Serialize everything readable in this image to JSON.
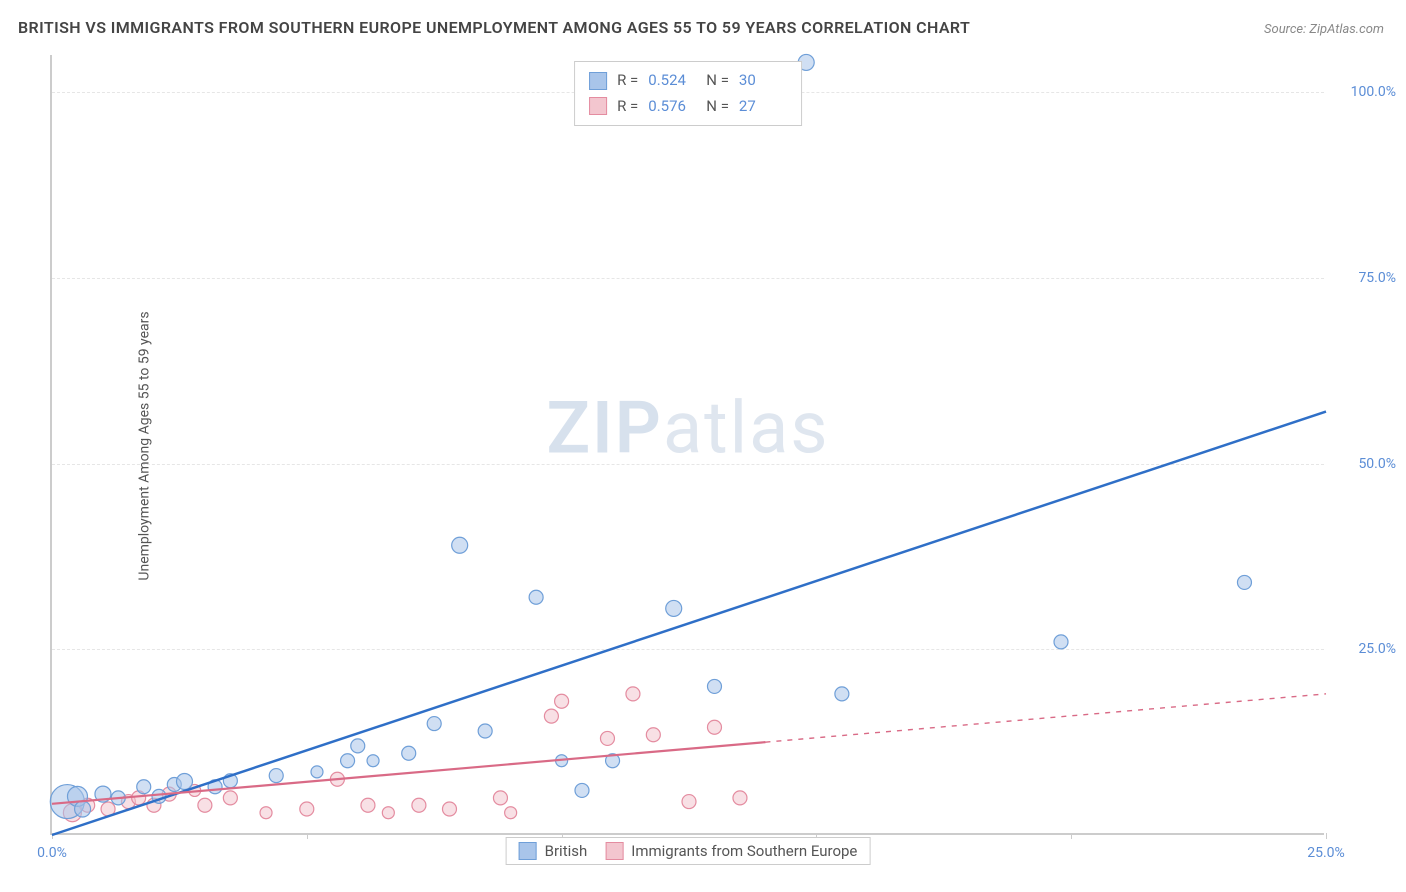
{
  "title": "BRITISH VS IMMIGRANTS FROM SOUTHERN EUROPE UNEMPLOYMENT AMONG AGES 55 TO 59 YEARS CORRELATION CHART",
  "source": "Source: ZipAtlas.com",
  "ylabel": "Unemployment Among Ages 55 to 59 years",
  "watermark_a": "ZIP",
  "watermark_b": "atlas",
  "chart": {
    "type": "scatter",
    "xlim": [
      0,
      25
    ],
    "ylim": [
      0,
      105
    ],
    "x_ticks": [
      0,
      5,
      10,
      15,
      20,
      25
    ],
    "x_tick_labels": {
      "0": "0.0%",
      "25": "25.0%"
    },
    "y_ticks": [
      25,
      50,
      75,
      100
    ],
    "y_tick_labels": {
      "25": "25.0%",
      "50": "50.0%",
      "75": "75.0%",
      "100": "100.0%"
    },
    "background_color": "#ffffff",
    "grid_color": "#e6e6e6",
    "axis_color": "#cccccc",
    "tick_label_color": "#5b8dd6",
    "title_fontsize": 16,
    "label_fontsize": 14
  },
  "series": {
    "british": {
      "label": "British",
      "color_fill": "#a9c5ea",
      "color_stroke": "#6f9fd8",
      "line_color": "#2f6fc7",
      "r_value": "0.524",
      "n_value": "30",
      "trend": {
        "x1": 0,
        "y1": 0,
        "x2": 25,
        "y2": 57
      },
      "points": [
        {
          "x": 0.3,
          "y": 4.5,
          "r": 17
        },
        {
          "x": 0.5,
          "y": 5.2,
          "r": 10
        },
        {
          "x": 0.6,
          "y": 3.5,
          "r": 8
        },
        {
          "x": 1.0,
          "y": 5.5,
          "r": 8
        },
        {
          "x": 1.3,
          "y": 5.0,
          "r": 7
        },
        {
          "x": 1.8,
          "y": 6.5,
          "r": 7
        },
        {
          "x": 2.1,
          "y": 5.2,
          "r": 7
        },
        {
          "x": 2.4,
          "y": 6.8,
          "r": 7
        },
        {
          "x": 2.6,
          "y": 7.2,
          "r": 8
        },
        {
          "x": 3.2,
          "y": 6.5,
          "r": 7
        },
        {
          "x": 3.5,
          "y": 7.3,
          "r": 7
        },
        {
          "x": 4.4,
          "y": 8.0,
          "r": 7
        },
        {
          "x": 5.8,
          "y": 10.0,
          "r": 7
        },
        {
          "x": 6.0,
          "y": 12.0,
          "r": 7
        },
        {
          "x": 6.3,
          "y": 10.0,
          "r": 6
        },
        {
          "x": 7.0,
          "y": 11.0,
          "r": 7
        },
        {
          "x": 7.5,
          "y": 15.0,
          "r": 7
        },
        {
          "x": 8.0,
          "y": 39.0,
          "r": 8
        },
        {
          "x": 8.5,
          "y": 14.0,
          "r": 7
        },
        {
          "x": 9.5,
          "y": 32.0,
          "r": 7
        },
        {
          "x": 10.0,
          "y": 10.0,
          "r": 6
        },
        {
          "x": 10.4,
          "y": 6.0,
          "r": 7
        },
        {
          "x": 11.0,
          "y": 10.0,
          "r": 7
        },
        {
          "x": 12.2,
          "y": 30.5,
          "r": 8
        },
        {
          "x": 13.0,
          "y": 20.0,
          "r": 7
        },
        {
          "x": 14.8,
          "y": 104.0,
          "r": 8
        },
        {
          "x": 15.5,
          "y": 19.0,
          "r": 7
        },
        {
          "x": 19.8,
          "y": 26.0,
          "r": 7
        },
        {
          "x": 23.4,
          "y": 34.0,
          "r": 7
        },
        {
          "x": 5.2,
          "y": 8.5,
          "r": 6
        }
      ]
    },
    "immigrants": {
      "label": "Immigrants from Southern Europe",
      "color_fill": "#f3c6cf",
      "color_stroke": "#e48ca0",
      "line_color": "#d96a86",
      "r_value": "0.576",
      "n_value": "27",
      "trend_solid": {
        "x1": 0,
        "y1": 4.2,
        "x2": 14,
        "y2": 12.5
      },
      "trend_dash": {
        "x1": 14,
        "y1": 12.5,
        "x2": 25,
        "y2": 19.0
      },
      "points": [
        {
          "x": 0.4,
          "y": 3.0,
          "r": 9
        },
        {
          "x": 0.7,
          "y": 4.0,
          "r": 7
        },
        {
          "x": 1.1,
          "y": 3.5,
          "r": 7
        },
        {
          "x": 1.5,
          "y": 4.5,
          "r": 7
        },
        {
          "x": 1.7,
          "y": 5.0,
          "r": 7
        },
        {
          "x": 2.0,
          "y": 4.0,
          "r": 7
        },
        {
          "x": 2.3,
          "y": 5.5,
          "r": 7
        },
        {
          "x": 2.8,
          "y": 6.0,
          "r": 6
        },
        {
          "x": 3.0,
          "y": 4.0,
          "r": 7
        },
        {
          "x": 3.5,
          "y": 5.0,
          "r": 7
        },
        {
          "x": 4.2,
          "y": 3.0,
          "r": 6
        },
        {
          "x": 5.0,
          "y": 3.5,
          "r": 7
        },
        {
          "x": 5.6,
          "y": 7.5,
          "r": 7
        },
        {
          "x": 6.2,
          "y": 4.0,
          "r": 7
        },
        {
          "x": 6.6,
          "y": 3.0,
          "r": 6
        },
        {
          "x": 7.2,
          "y": 4.0,
          "r": 7
        },
        {
          "x": 7.8,
          "y": 3.5,
          "r": 7
        },
        {
          "x": 8.8,
          "y": 5.0,
          "r": 7
        },
        {
          "x": 9.0,
          "y": 3.0,
          "r": 6
        },
        {
          "x": 9.8,
          "y": 16.0,
          "r": 7
        },
        {
          "x": 10.0,
          "y": 18.0,
          "r": 7
        },
        {
          "x": 10.9,
          "y": 13.0,
          "r": 7
        },
        {
          "x": 11.4,
          "y": 19.0,
          "r": 7
        },
        {
          "x": 11.8,
          "y": 13.5,
          "r": 7
        },
        {
          "x": 12.5,
          "y": 4.5,
          "r": 7
        },
        {
          "x": 13.0,
          "y": 14.5,
          "r": 7
        },
        {
          "x": 13.5,
          "y": 5.0,
          "r": 7
        }
      ]
    }
  },
  "legend_stats": {
    "r_label": "R =",
    "n_label": "N ="
  },
  "legend_bottom": {
    "a": "British",
    "b": "Immigrants from Southern Europe"
  }
}
